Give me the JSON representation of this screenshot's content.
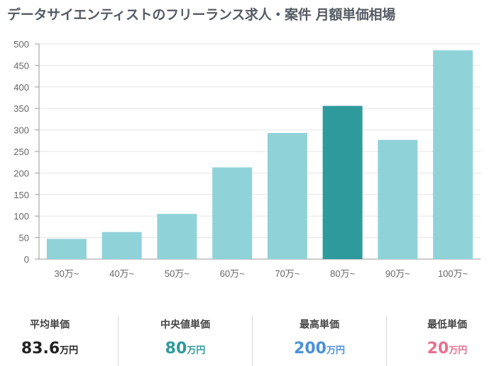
{
  "page_title": "データサイエンティストのフリーランス求人・案件 月額単価相場",
  "chart_data": {
    "type": "bar",
    "title": "データサイエンティストのフリーランス求人・案件 月額単価相場",
    "xlabel": "",
    "ylabel": "",
    "categories": [
      "30万~",
      "40万~",
      "50万~",
      "60万~",
      "70万~",
      "80万~",
      "90万~",
      "100万~"
    ],
    "values": [
      47,
      63,
      105,
      213,
      293,
      356,
      277,
      485
    ],
    "highlight_index": 5,
    "ylim": [
      0,
      500
    ],
    "yticks": [
      0,
      50,
      100,
      150,
      200,
      250,
      300,
      350,
      400,
      450,
      500
    ],
    "grid": true,
    "colors": {
      "bar": "#8fd3d9",
      "highlight": "#2e9a9c",
      "grid": "#e5e5e5",
      "axis": "#9a9a9a",
      "tick_text": "#666666"
    }
  },
  "stats": [
    {
      "label": "平均単価",
      "value": "83.6",
      "unit": "万円",
      "color": "#222222"
    },
    {
      "label": "中央値単価",
      "value": "80",
      "unit": "万円",
      "color": "#2e9a9c"
    },
    {
      "label": "最高単価",
      "value": "200",
      "unit": "万円",
      "color": "#4a90d9"
    },
    {
      "label": "最低単価",
      "value": "20",
      "unit": "万円",
      "color": "#e8708f"
    }
  ]
}
